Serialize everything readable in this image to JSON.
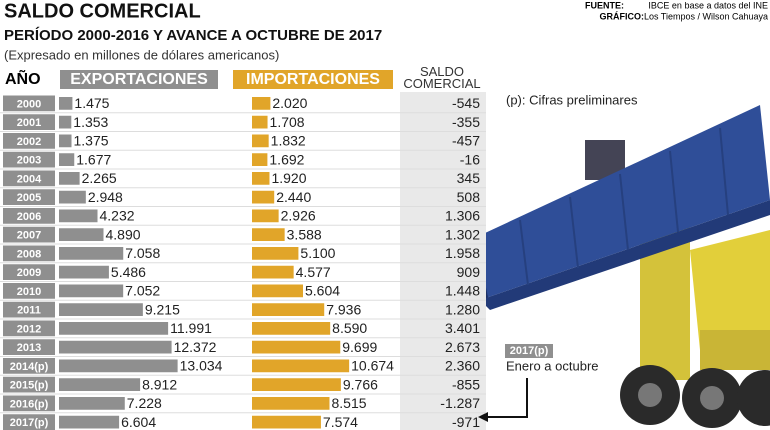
{
  "chart_data": {
    "type": "table-bar",
    "title": "SALDO COMERCIAL",
    "subtitle": "PERÍODO 2000-2016 Y AVANCE A OCTUBRE DE 2017",
    "unit_note": "(Expresado en millones de dólares americanos)",
    "source_label": "FUENTE:",
    "source": "IBCE en base a datos del INE",
    "credit_label": "GRÁFICO:",
    "credit": "Los Tiempos / Wilson Cahuaya",
    "year_header": "AÑO",
    "balance_header": "SALDO COMERCIAL",
    "note": "(p): Cifras preliminares",
    "callout_year": "2017(p)",
    "callout_text": "Enero a octubre",
    "categories": [
      "2000",
      "2001",
      "2002",
      "2003",
      "2004",
      "2005",
      "2006",
      "2007",
      "2008",
      "2009",
      "2010",
      "2011",
      "2012",
      "2013",
      "2014(p)",
      "2015(p)",
      "2016(p)",
      "2017(p)"
    ],
    "series": [
      {
        "name": "EXPORTACIONES",
        "color": "#8f8f8f",
        "values": [
          1475,
          1353,
          1375,
          1677,
          2265,
          2948,
          4232,
          4890,
          7058,
          5486,
          7052,
          9215,
          11991,
          12372,
          13034,
          8912,
          7228,
          6604
        ],
        "value_labels": [
          "1.475",
          "1.353",
          "1.375",
          "1.677",
          "2.265",
          "2.948",
          "4.232",
          "4.890",
          "7.058",
          "5.486",
          "7.052",
          "9.215",
          "11.991",
          "12.372",
          "13.034",
          "8.912",
          "7.228",
          "6.604"
        ]
      },
      {
        "name": "IMPORTACIONES",
        "color": "#e1a529",
        "values": [
          2020,
          1708,
          1832,
          1692,
          1920,
          2440,
          2926,
          3588,
          5100,
          4577,
          5604,
          7936,
          8590,
          9699,
          10674,
          9766,
          8515,
          7574
        ],
        "value_labels": [
          "2.020",
          "1.708",
          "1.832",
          "1.692",
          "1.920",
          "2.440",
          "2.926",
          "3.588",
          "5.100",
          "4.577",
          "5.604",
          "7.936",
          "8.590",
          "9.699",
          "10.674",
          "9.766",
          "8.515",
          "7.574"
        ]
      },
      {
        "name": "SALDO COMERCIAL",
        "values": [
          -545,
          -355,
          -457,
          -16,
          345,
          508,
          1306,
          1302,
          1958,
          909,
          1448,
          1280,
          3401,
          2673,
          2360,
          -855,
          -1287,
          -971
        ],
        "value_labels": [
          "-545",
          "-355",
          "-457",
          "-16",
          "345",
          "508",
          "1.306",
          "1.302",
          "1.958",
          "909",
          "1.448",
          "1.280",
          "3.401",
          "2.673",
          "2.360",
          "-855",
          "-1.287",
          "-971"
        ]
      }
    ]
  }
}
